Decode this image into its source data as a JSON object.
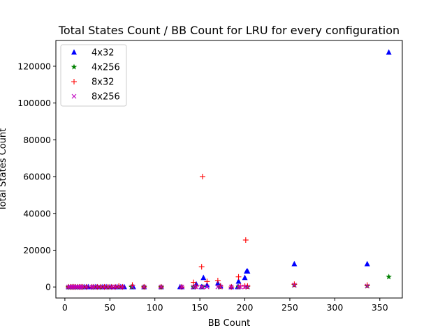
{
  "chart_data": {
    "type": "scatter",
    "title": "Total States Count / BB Count for LRU for every configuration",
    "xlabel": "BB Count",
    "ylabel": "Total States Count",
    "xlim": [
      -10,
      375
    ],
    "ylim": [
      -6000,
      134000
    ],
    "xticks": [
      0,
      50,
      100,
      150,
      200,
      250,
      300,
      350
    ],
    "yticks": [
      0,
      20000,
      40000,
      60000,
      80000,
      100000,
      120000
    ],
    "grid": false,
    "legend_position": "top-left",
    "series": [
      {
        "name": "4x32",
        "marker": "triangle",
        "color": "#0000ff",
        "x": [
          4,
          6,
          8,
          10,
          12,
          14,
          16,
          18,
          20,
          22,
          24,
          26,
          30,
          32,
          34,
          36,
          40,
          42,
          44,
          46,
          50,
          52,
          56,
          58,
          60,
          62,
          64,
          66,
          75,
          76,
          88,
          107,
          128,
          130,
          143,
          146,
          152,
          154,
          158,
          170,
          173,
          185,
          192,
          193,
          200,
          202,
          203,
          255,
          336,
          360
        ],
        "y": [
          0,
          0,
          0,
          0,
          0,
          0,
          0,
          0,
          0,
          0,
          0,
          0,
          0,
          0,
          0,
          0,
          0,
          0,
          0,
          0,
          0,
          0,
          0,
          0,
          0,
          0,
          0,
          0,
          0,
          0,
          0,
          0,
          0,
          0,
          0,
          1500,
          0,
          5000,
          1000,
          2000,
          500,
          0,
          0,
          3000,
          5000,
          8500,
          8500,
          12500,
          12500,
          127500
        ]
      },
      {
        "name": "4x256",
        "marker": "star",
        "color": "#008000",
        "x": [
          4,
          6,
          10,
          14,
          20,
          32,
          40,
          48,
          60,
          74,
          88,
          107,
          143,
          153,
          172,
          193,
          203,
          255,
          336,
          360
        ],
        "y": [
          0,
          0,
          0,
          0,
          0,
          0,
          0,
          0,
          0,
          0,
          0,
          0,
          0,
          0,
          0,
          0,
          0,
          1000,
          500,
          5500
        ]
      },
      {
        "name": "8x32",
        "marker": "plus",
        "color": "#ff0000",
        "x": [
          4,
          6,
          8,
          10,
          12,
          14,
          16,
          18,
          20,
          24,
          30,
          32,
          36,
          40,
          44,
          48,
          52,
          56,
          60,
          64,
          75,
          88,
          107,
          130,
          143,
          146,
          152,
          153,
          158,
          170,
          173,
          185,
          193,
          195,
          200,
          201,
          203,
          255,
          336
        ],
        "y": [
          0,
          0,
          0,
          0,
          0,
          0,
          0,
          0,
          0,
          0,
          0,
          0,
          0,
          0,
          0,
          0,
          0,
          0,
          500,
          0,
          1000,
          0,
          0,
          0,
          2500,
          500,
          11000,
          60000,
          3000,
          3500,
          500,
          0,
          5500,
          500,
          500,
          25500,
          500,
          1500,
          1000
        ]
      },
      {
        "name": "8x256",
        "marker": "cross",
        "color": "#bf00bf",
        "x": [
          4,
          6,
          8,
          10,
          12,
          14,
          16,
          18,
          20,
          24,
          30,
          32,
          36,
          40,
          44,
          48,
          52,
          56,
          60,
          64,
          75,
          88,
          107,
          130,
          143,
          146,
          152,
          153,
          158,
          170,
          173,
          185,
          193,
          195,
          200,
          203,
          255,
          336
        ],
        "y": [
          0,
          0,
          0,
          0,
          0,
          0,
          0,
          0,
          0,
          0,
          0,
          0,
          0,
          0,
          0,
          0,
          0,
          0,
          0,
          0,
          0,
          0,
          0,
          0,
          0,
          0,
          0,
          0,
          0,
          0,
          0,
          0,
          0,
          0,
          0,
          0,
          1000,
          500
        ]
      }
    ]
  }
}
